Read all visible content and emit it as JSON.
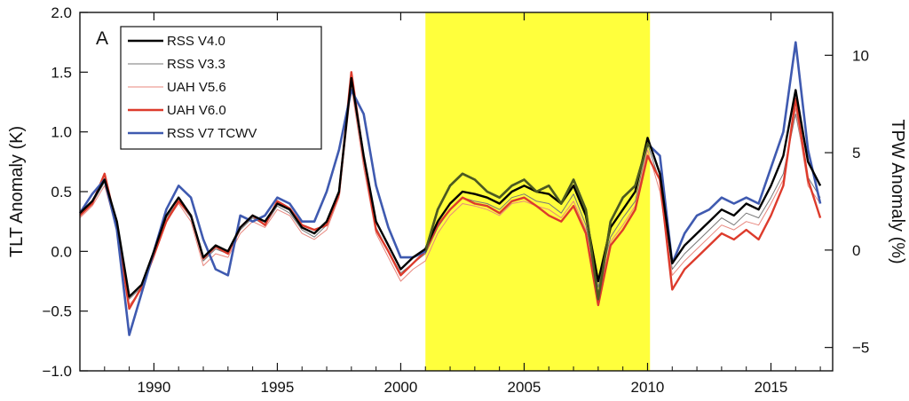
{
  "chart_data": {
    "type": "line",
    "panel_label": "A",
    "xlabel": "",
    "ylabel": "TLT Anomaly (K)",
    "ylabel_right": "TPW Anomaly (%)",
    "xlim": [
      1987.0,
      2017.5
    ],
    "ylim": [
      -1.0,
      2.0
    ],
    "ylim_right": [
      -6.2,
      12.2
    ],
    "x_ticks": [
      1990,
      1995,
      2000,
      2005,
      2010,
      2015
    ],
    "x_tick_labels": [
      "1990",
      "1995",
      "2000",
      "2005",
      "2010",
      "2015"
    ],
    "y_ticks": [
      -1.0,
      -0.5,
      0.0,
      0.5,
      1.0,
      1.5,
      2.0
    ],
    "y_tick_labels": [
      "−1.0",
      "−0.5",
      "0.0",
      "0.5",
      "1.0",
      "1.5",
      "2.0"
    ],
    "y_right_ticks": [
      -5,
      0,
      5,
      10
    ],
    "y_right_tick_labels": [
      "−5",
      "0",
      "5",
      "10"
    ],
    "highlight_span": [
      2001.0,
      2010.1
    ],
    "legend": [
      "RSS V4.0",
      "RSS V3.3",
      "UAH V5.6",
      "UAH V6.0",
      "RSS V7 TCWV"
    ],
    "colors": {
      "rss_v40": "#000000",
      "rss_v33": "#777777",
      "uah_v56": "#e8877e",
      "uah_v60": "#dd3b2c",
      "tcwv": "#3f5ab0",
      "highlight": "#ffff3c",
      "highlight_overlap": "#4d5a1c"
    },
    "x": [
      1987.0,
      1987.5,
      1988.0,
      1988.5,
      1989.0,
      1989.5,
      1990.0,
      1990.5,
      1991.0,
      1991.5,
      1992.0,
      1992.5,
      1993.0,
      1993.5,
      1994.0,
      1994.5,
      1995.0,
      1995.5,
      1996.0,
      1996.5,
      1997.0,
      1997.5,
      1998.0,
      1998.5,
      1999.0,
      1999.5,
      2000.0,
      2000.5,
      2001.0,
      2001.5,
      2002.0,
      2002.5,
      2003.0,
      2003.5,
      2004.0,
      2004.5,
      2005.0,
      2005.5,
      2006.0,
      2006.5,
      2007.0,
      2007.5,
      2008.0,
      2008.5,
      2009.0,
      2009.5,
      2010.0,
      2010.5,
      2011.0,
      2011.5,
      2012.0,
      2012.5,
      2013.0,
      2013.5,
      2014.0,
      2014.5,
      2015.0,
      2015.5,
      2016.0,
      2016.5,
      2017.0
    ],
    "series": [
      {
        "name": "RSS V4.0",
        "key": "rss_v40",
        "width": 2.4,
        "values": [
          0.32,
          0.42,
          0.6,
          0.25,
          -0.38,
          -0.28,
          0.0,
          0.3,
          0.45,
          0.3,
          -0.05,
          0.05,
          0.0,
          0.2,
          0.3,
          0.25,
          0.4,
          0.35,
          0.2,
          0.15,
          0.25,
          0.5,
          1.45,
          0.8,
          0.25,
          0.05,
          -0.15,
          -0.05,
          0.02,
          0.25,
          0.4,
          0.5,
          0.48,
          0.45,
          0.4,
          0.5,
          0.55,
          0.5,
          0.48,
          0.4,
          0.55,
          0.3,
          -0.25,
          0.2,
          0.35,
          0.5,
          0.95,
          0.65,
          -0.1,
          0.05,
          0.15,
          0.25,
          0.35,
          0.3,
          0.4,
          0.35,
          0.55,
          0.8,
          1.35,
          0.75,
          0.55
        ]
      },
      {
        "name": "RSS V3.3",
        "key": "rss_v33",
        "width": 1.0,
        "values": [
          0.3,
          0.4,
          0.58,
          0.22,
          -0.4,
          -0.3,
          -0.02,
          0.28,
          0.42,
          0.28,
          -0.08,
          0.02,
          -0.02,
          0.18,
          0.28,
          0.22,
          0.38,
          0.32,
          0.18,
          0.12,
          0.22,
          0.48,
          1.4,
          0.75,
          0.2,
          0.0,
          -0.18,
          -0.1,
          -0.02,
          0.2,
          0.35,
          0.45,
          0.42,
          0.4,
          0.35,
          0.45,
          0.48,
          0.42,
          0.4,
          0.32,
          0.48,
          0.22,
          -0.3,
          0.12,
          0.28,
          0.42,
          0.9,
          0.58,
          -0.15,
          -0.02,
          0.08,
          0.18,
          0.28,
          0.22,
          0.32,
          0.28,
          0.45,
          0.65,
          1.15,
          0.62,
          0.45
        ]
      },
      {
        "name": "UAH V5.6",
        "key": "uah_v56",
        "width": 1.0,
        "values": [
          0.28,
          0.38,
          0.55,
          0.18,
          -0.45,
          -0.32,
          -0.05,
          0.25,
          0.4,
          0.25,
          -0.12,
          -0.02,
          -0.05,
          0.15,
          0.25,
          0.2,
          0.35,
          0.3,
          0.15,
          0.1,
          0.18,
          0.45,
          1.38,
          0.7,
          0.15,
          -0.05,
          -0.25,
          -0.15,
          -0.08,
          0.15,
          0.3,
          0.4,
          0.38,
          0.35,
          0.3,
          0.4,
          0.42,
          0.38,
          0.35,
          0.28,
          0.42,
          0.18,
          -0.38,
          0.08,
          0.22,
          0.38,
          0.85,
          0.5,
          -0.2,
          -0.08,
          0.02,
          0.12,
          0.22,
          0.18,
          0.25,
          0.22,
          0.4,
          0.6,
          1.2,
          0.55,
          0.4
        ]
      },
      {
        "name": "UAH V6.0",
        "key": "uah_v60",
        "width": 2.4,
        "values": [
          0.3,
          0.4,
          0.65,
          0.2,
          -0.48,
          -0.3,
          -0.03,
          0.25,
          0.42,
          0.3,
          -0.06,
          0.04,
          -0.02,
          0.2,
          0.3,
          0.22,
          0.42,
          0.36,
          0.22,
          0.18,
          0.22,
          0.48,
          1.5,
          0.78,
          0.18,
          0.0,
          -0.2,
          -0.1,
          0.0,
          0.22,
          0.35,
          0.45,
          0.4,
          0.38,
          0.32,
          0.42,
          0.45,
          0.38,
          0.3,
          0.25,
          0.38,
          0.15,
          -0.45,
          0.05,
          0.18,
          0.35,
          0.8,
          0.6,
          -0.32,
          -0.15,
          -0.05,
          0.05,
          0.15,
          0.1,
          0.18,
          0.1,
          0.3,
          0.55,
          1.28,
          0.6,
          0.28
        ]
      },
      {
        "name": "RSS V7 TCWV",
        "key": "tcwv",
        "width": 2.6,
        "values": [
          0.32,
          0.48,
          0.6,
          0.18,
          -0.7,
          -0.35,
          0.0,
          0.35,
          0.55,
          0.45,
          0.1,
          -0.15,
          -0.2,
          0.3,
          0.25,
          0.3,
          0.45,
          0.4,
          0.25,
          0.25,
          0.5,
          0.85,
          1.35,
          1.15,
          0.55,
          0.2,
          -0.05,
          -0.05,
          0.0,
          0.35,
          0.55,
          0.65,
          0.6,
          0.5,
          0.45,
          0.55,
          0.6,
          0.5,
          0.55,
          0.4,
          0.6,
          0.35,
          -0.4,
          0.25,
          0.45,
          0.55,
          0.9,
          0.8,
          -0.1,
          0.15,
          0.3,
          0.35,
          0.45,
          0.4,
          0.45,
          0.4,
          0.7,
          1.0,
          1.75,
          0.85,
          0.4
        ]
      }
    ]
  }
}
